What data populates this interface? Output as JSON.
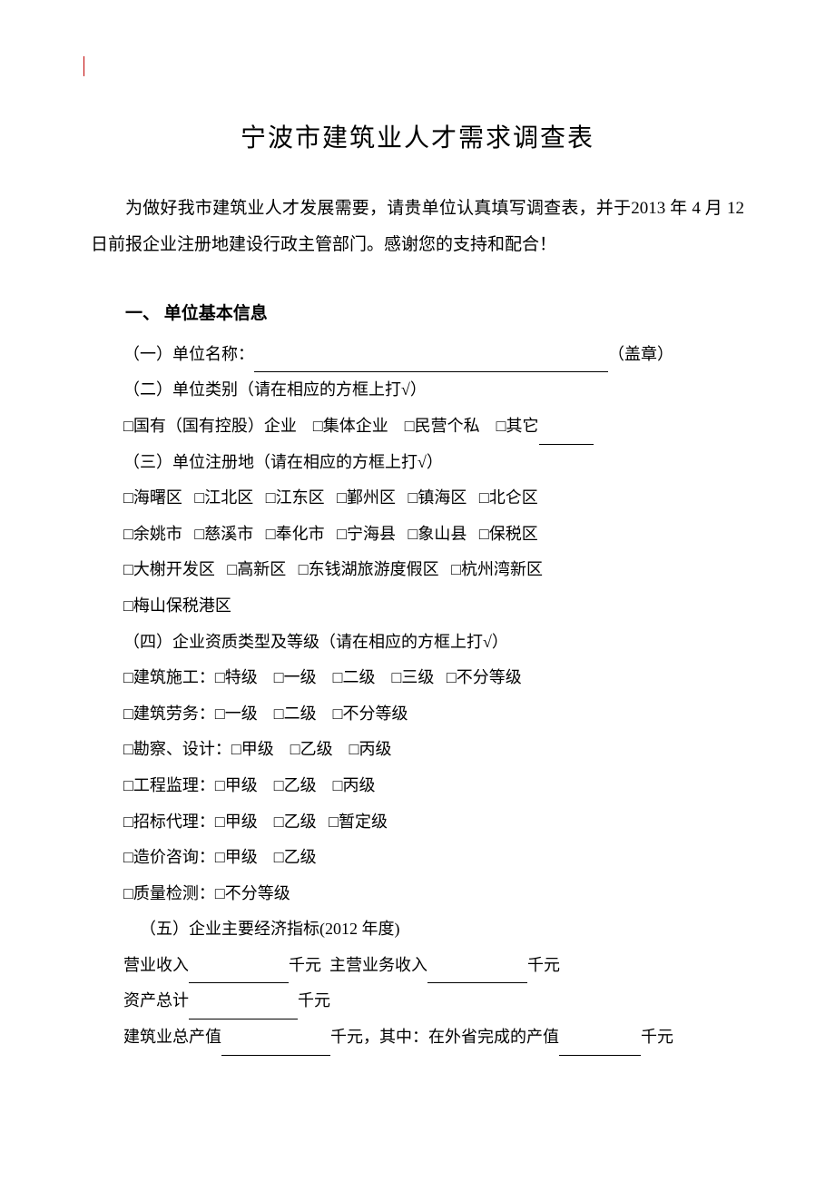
{
  "title": "宁波市建筑业人才需求调查表",
  "intro": "为做好我市建筑业人才发展需要，请贵单位认真填写调查表，并于2013 年 4 月 12 日前报企业注册地建设行政主管部门。感谢您的支持和配合！",
  "section1": {
    "heading": "一、 单位基本信息",
    "item1_label": "（一）单位名称：",
    "item1_suffix": "（盖章）",
    "item2": "（二）单位类别（请在相应的方框上打√）",
    "type_options": "□国有（国有控股）企业    □集体企业    □民营个私    □其它",
    "item3": "（三）单位注册地（请在相应的方框上打√）",
    "loc_row1": "□海曙区   □江北区   □江东区   □鄞州区   □镇海区   □北仑区",
    "loc_row2": "□余姚市   □慈溪市   □奉化市   □宁海县   □象山县   □保税区",
    "loc_row3": "□大榭开发区   □高新区   □东钱湖旅游度假区   □杭州湾新区",
    "loc_row4": "□梅山保税港区",
    "item4": "（四）企业资质类型及等级（请在相应的方框上打√）",
    "qual1": "□建筑施工：□特级    □一级    □二级    □三级   □不分等级",
    "qual2": "□建筑劳务：□一级    □二级    □不分等级",
    "qual3": "□勘察、设计：□甲级    □乙级    □丙级",
    "qual4": "□工程监理：□甲级    □乙级    □丙级",
    "qual5": "□招标代理：□甲级    □乙级   □暂定级",
    "qual6": "□造价咨询：□甲级    □乙级",
    "qual7": "□质量检测：□不分等级",
    "item5": "（五）企业主要经济指标(2012 年度)",
    "eco1a": "营业收入",
    "eco1b": "千元  主营业务收入",
    "eco1c": "千元",
    "eco2a": "资产总计",
    "eco2b": "千元",
    "eco3a": "建筑业总产值",
    "eco3b": "千元，其中：在外省完成的产值",
    "eco3c": "千元"
  },
  "colors": {
    "text": "#000000",
    "background": "#ffffff",
    "cursor": "#c00000"
  },
  "fonts": {
    "body_family": "SimSun",
    "title_size_pt": 21,
    "body_size_pt": 14
  }
}
